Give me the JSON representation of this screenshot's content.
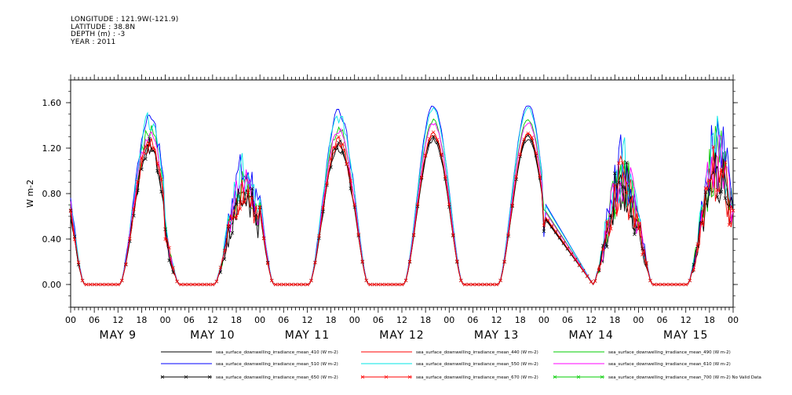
{
  "header": {
    "longitude": "LONGITUDE : 121.9W(-121.9)",
    "latitude": "LATITUDE : 38.8N",
    "depth": "DEPTH (m) : -3",
    "year": "YEAR : 2011"
  },
  "chart_data": {
    "type": "line",
    "title": "",
    "xlabel": "",
    "ylabel": "W m-2",
    "ylim": [
      -0.2,
      1.8
    ],
    "y_ticks": [
      0.0,
      0.4,
      0.8,
      1.2,
      1.6
    ],
    "y_tick_labels": [
      "0.00",
      "0.40",
      "0.80",
      "1.20",
      "1.60"
    ],
    "x_range_hours": [
      0,
      168
    ],
    "x_tick_labels": [
      "00",
      "06",
      "12",
      "18",
      "00",
      "06",
      "12",
      "18",
      "00",
      "06",
      "12",
      "18",
      "00",
      "06",
      "12",
      "18",
      "00",
      "06",
      "12",
      "18",
      "00",
      "06",
      "12",
      "18",
      "00",
      "06",
      "12",
      "18",
      "00"
    ],
    "day_labels": [
      "MAY  9",
      "MAY 10",
      "MAY 11",
      "MAY 12",
      "MAY 13",
      "MAY 14",
      "MAY 15"
    ],
    "day_peaks": [
      1.3,
      1.0,
      1.3,
      1.33,
      1.33,
      1.15,
      1.3
    ],
    "day_noise": [
      0.15,
      0.45,
      0.1,
      0.03,
      0.02,
      0.6,
      0.55
    ],
    "series": [
      {
        "name": "sea_surface_downwelling_irradiance_mean_410 (W m-2)",
        "color": "#000000",
        "scale": 0.97,
        "marker": "none"
      },
      {
        "name": "sea_surface_downwelling_irradiance_mean_440 (W m-2)",
        "color": "#ff0000",
        "scale": 1.0,
        "marker": "none"
      },
      {
        "name": "sea_surface_downwelling_irradiance_mean_490 (W m-2)",
        "color": "#00cc00",
        "scale": 1.1,
        "marker": "none"
      },
      {
        "name": "sea_surface_downwelling_irradiance_mean_510 (W m-2)",
        "color": "#0000ff",
        "scale": 1.2,
        "marker": "none"
      },
      {
        "name": "sea_surface_downwelling_irradiance_mean_550 (W m-2)",
        "color": "#00e5e5",
        "scale": 1.18,
        "marker": "none"
      },
      {
        "name": "sea_surface_downwelling_irradiance_mean_610 (W m-2)",
        "color": "#ff00ff",
        "scale": 1.08,
        "marker": "none"
      },
      {
        "name": "sea_surface_downwelling_irradiance_mean_650 (W m-2)",
        "color": "#000000",
        "scale": 0.99,
        "marker": "x"
      },
      {
        "name": "sea_surface_downwelling_irradiance_mean_670 (W m-2)",
        "color": "#ff0000",
        "scale": 1.01,
        "marker": "x"
      },
      {
        "name": "sea_surface_downwelling_irradiance_mean_700 (W m-2) No Valid Data",
        "color": "#00cc00",
        "scale": 0,
        "marker": "x"
      }
    ],
    "legend_placement": "bottom",
    "grid": false
  }
}
